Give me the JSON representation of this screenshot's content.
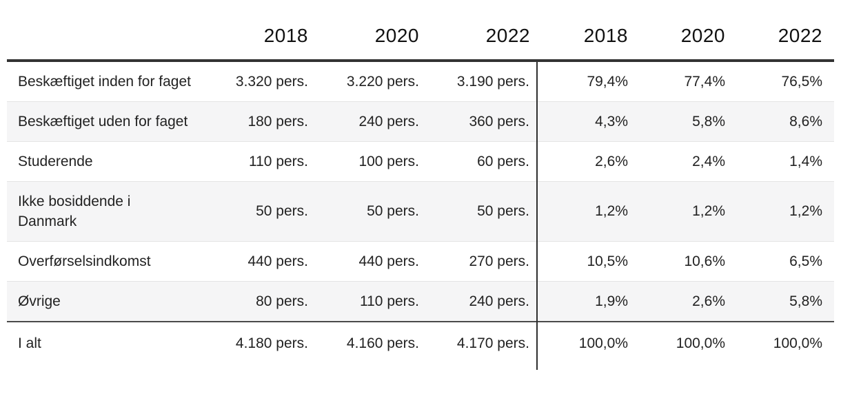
{
  "chart_data": {
    "type": "table",
    "title": "",
    "description_semantics": "Employment status table (Danish): persons counts and percentage shares for 2018, 2020, 2022",
    "columns": [
      "",
      "2018",
      "2020",
      "2022",
      "2018",
      "2020",
      "2022"
    ],
    "column_groups": [
      {
        "name": "persons",
        "unit": "pers.",
        "columns": [
          "2018",
          "2020",
          "2022"
        ]
      },
      {
        "name": "share",
        "unit": "%",
        "columns": [
          "2018",
          "2020",
          "2022"
        ]
      }
    ],
    "rows": [
      {
        "label": "Beskæftiget inden for faget",
        "pers_values": [
          3320,
          3220,
          3190
        ],
        "pers_text": [
          "3.320 pers.",
          "3.220 pers.",
          "3.190 pers."
        ],
        "pct_values": [
          79.4,
          77.4,
          76.5
        ],
        "pct_text": [
          "79,4%",
          "77,4%",
          "76,5%"
        ]
      },
      {
        "label": "Beskæftiget uden for faget",
        "pers_values": [
          180,
          240,
          360
        ],
        "pers_text": [
          "180 pers.",
          "240 pers.",
          "360 pers."
        ],
        "pct_values": [
          4.3,
          5.8,
          8.6
        ],
        "pct_text": [
          "4,3%",
          "5,8%",
          "8,6%"
        ]
      },
      {
        "label": "Studerende",
        "pers_values": [
          110,
          100,
          60
        ],
        "pers_text": [
          "110 pers.",
          "100 pers.",
          "60 pers."
        ],
        "pct_values": [
          2.6,
          2.4,
          1.4
        ],
        "pct_text": [
          "2,6%",
          "2,4%",
          "1,4%"
        ]
      },
      {
        "label": "Ikke bosiddende i Danmark",
        "pers_values": [
          50,
          50,
          50
        ],
        "pers_text": [
          "50 pers.",
          "50 pers.",
          "50 pers."
        ],
        "pct_values": [
          1.2,
          1.2,
          1.2
        ],
        "pct_text": [
          "1,2%",
          "1,2%",
          "1,2%"
        ]
      },
      {
        "label": "Overførselsindkomst",
        "pers_values": [
          440,
          440,
          270
        ],
        "pers_text": [
          "440 pers.",
          "440 pers.",
          "270 pers."
        ],
        "pct_values": [
          10.5,
          10.6,
          6.5
        ],
        "pct_text": [
          "10,5%",
          "10,6%",
          "6,5%"
        ]
      },
      {
        "label": "Øvrige",
        "pers_values": [
          80,
          110,
          240
        ],
        "pers_text": [
          "80 pers.",
          "110 pers.",
          "240 pers."
        ],
        "pct_values": [
          1.9,
          2.6,
          5.8
        ],
        "pct_text": [
          "1,9%",
          "2,6%",
          "5,8%"
        ]
      }
    ],
    "total_row": {
      "label": "I alt",
      "pers_values": [
        4180,
        4160,
        4170
      ],
      "pers_text": [
        "4.180 pers.",
        "4.160 pers.",
        "4.170 pers."
      ],
      "pct_values": [
        100.0,
        100.0,
        100.0
      ],
      "pct_text": [
        "100,0%",
        "100,0%",
        "100,0%"
      ]
    }
  },
  "colors": {
    "text": "#1a1a1a",
    "stripe_background": "#f5f5f6",
    "header_rule": "#333333",
    "total_rule": "#4a4a4a",
    "row_divider": "#e4e4e4",
    "column_divider": "#2e2e2e",
    "background": "#ffffff"
  }
}
